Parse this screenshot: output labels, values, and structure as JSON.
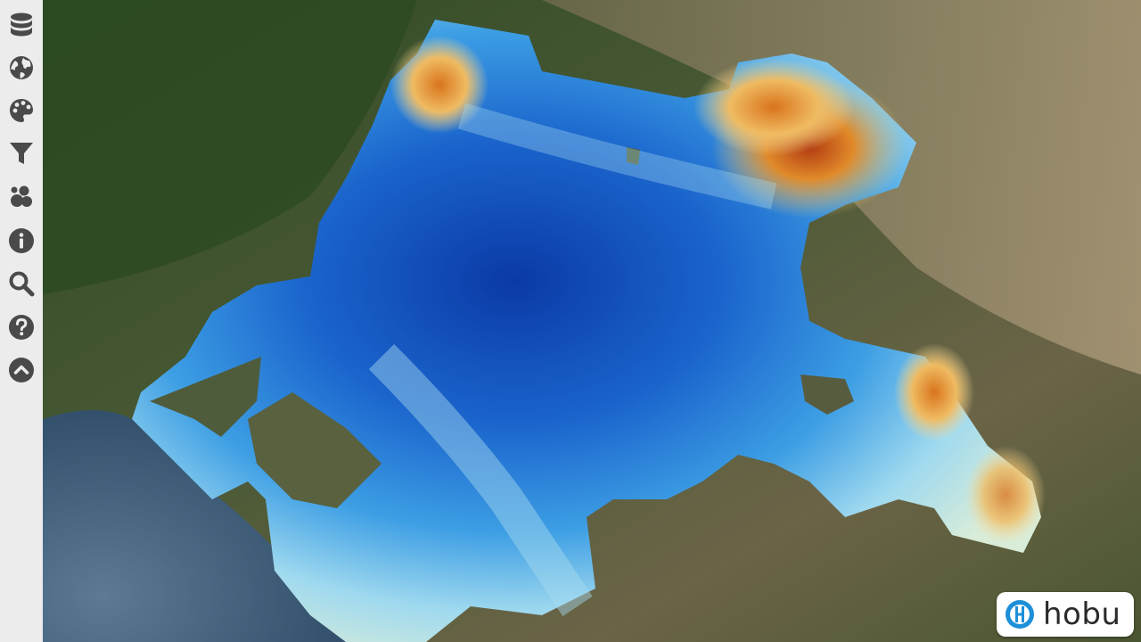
{
  "sidebar": {
    "items": [
      {
        "icon": "database-icon",
        "name": "sidebar-item-data"
      },
      {
        "icon": "globe-icon",
        "name": "sidebar-item-scene"
      },
      {
        "icon": "palette-icon",
        "name": "sidebar-item-appearance"
      },
      {
        "icon": "filter-icon",
        "name": "sidebar-item-filters"
      },
      {
        "icon": "points-icon",
        "name": "sidebar-item-point-size"
      },
      {
        "icon": "info-icon",
        "name": "sidebar-item-info"
      },
      {
        "icon": "search-icon",
        "name": "sidebar-item-search"
      },
      {
        "icon": "help-icon",
        "name": "sidebar-item-help"
      },
      {
        "icon": "chevron-up-icon",
        "name": "sidebar-item-collapse"
      }
    ]
  },
  "colors": {
    "sidebar_bg": "#ececec",
    "icon": "#4a4a4a",
    "brand": "#1d8fd8",
    "elevation_low": "#0a3aa8",
    "elevation_mid": "#7fd0ee",
    "elevation_high": "#c23a10"
  },
  "logo": {
    "text": "hobu"
  }
}
